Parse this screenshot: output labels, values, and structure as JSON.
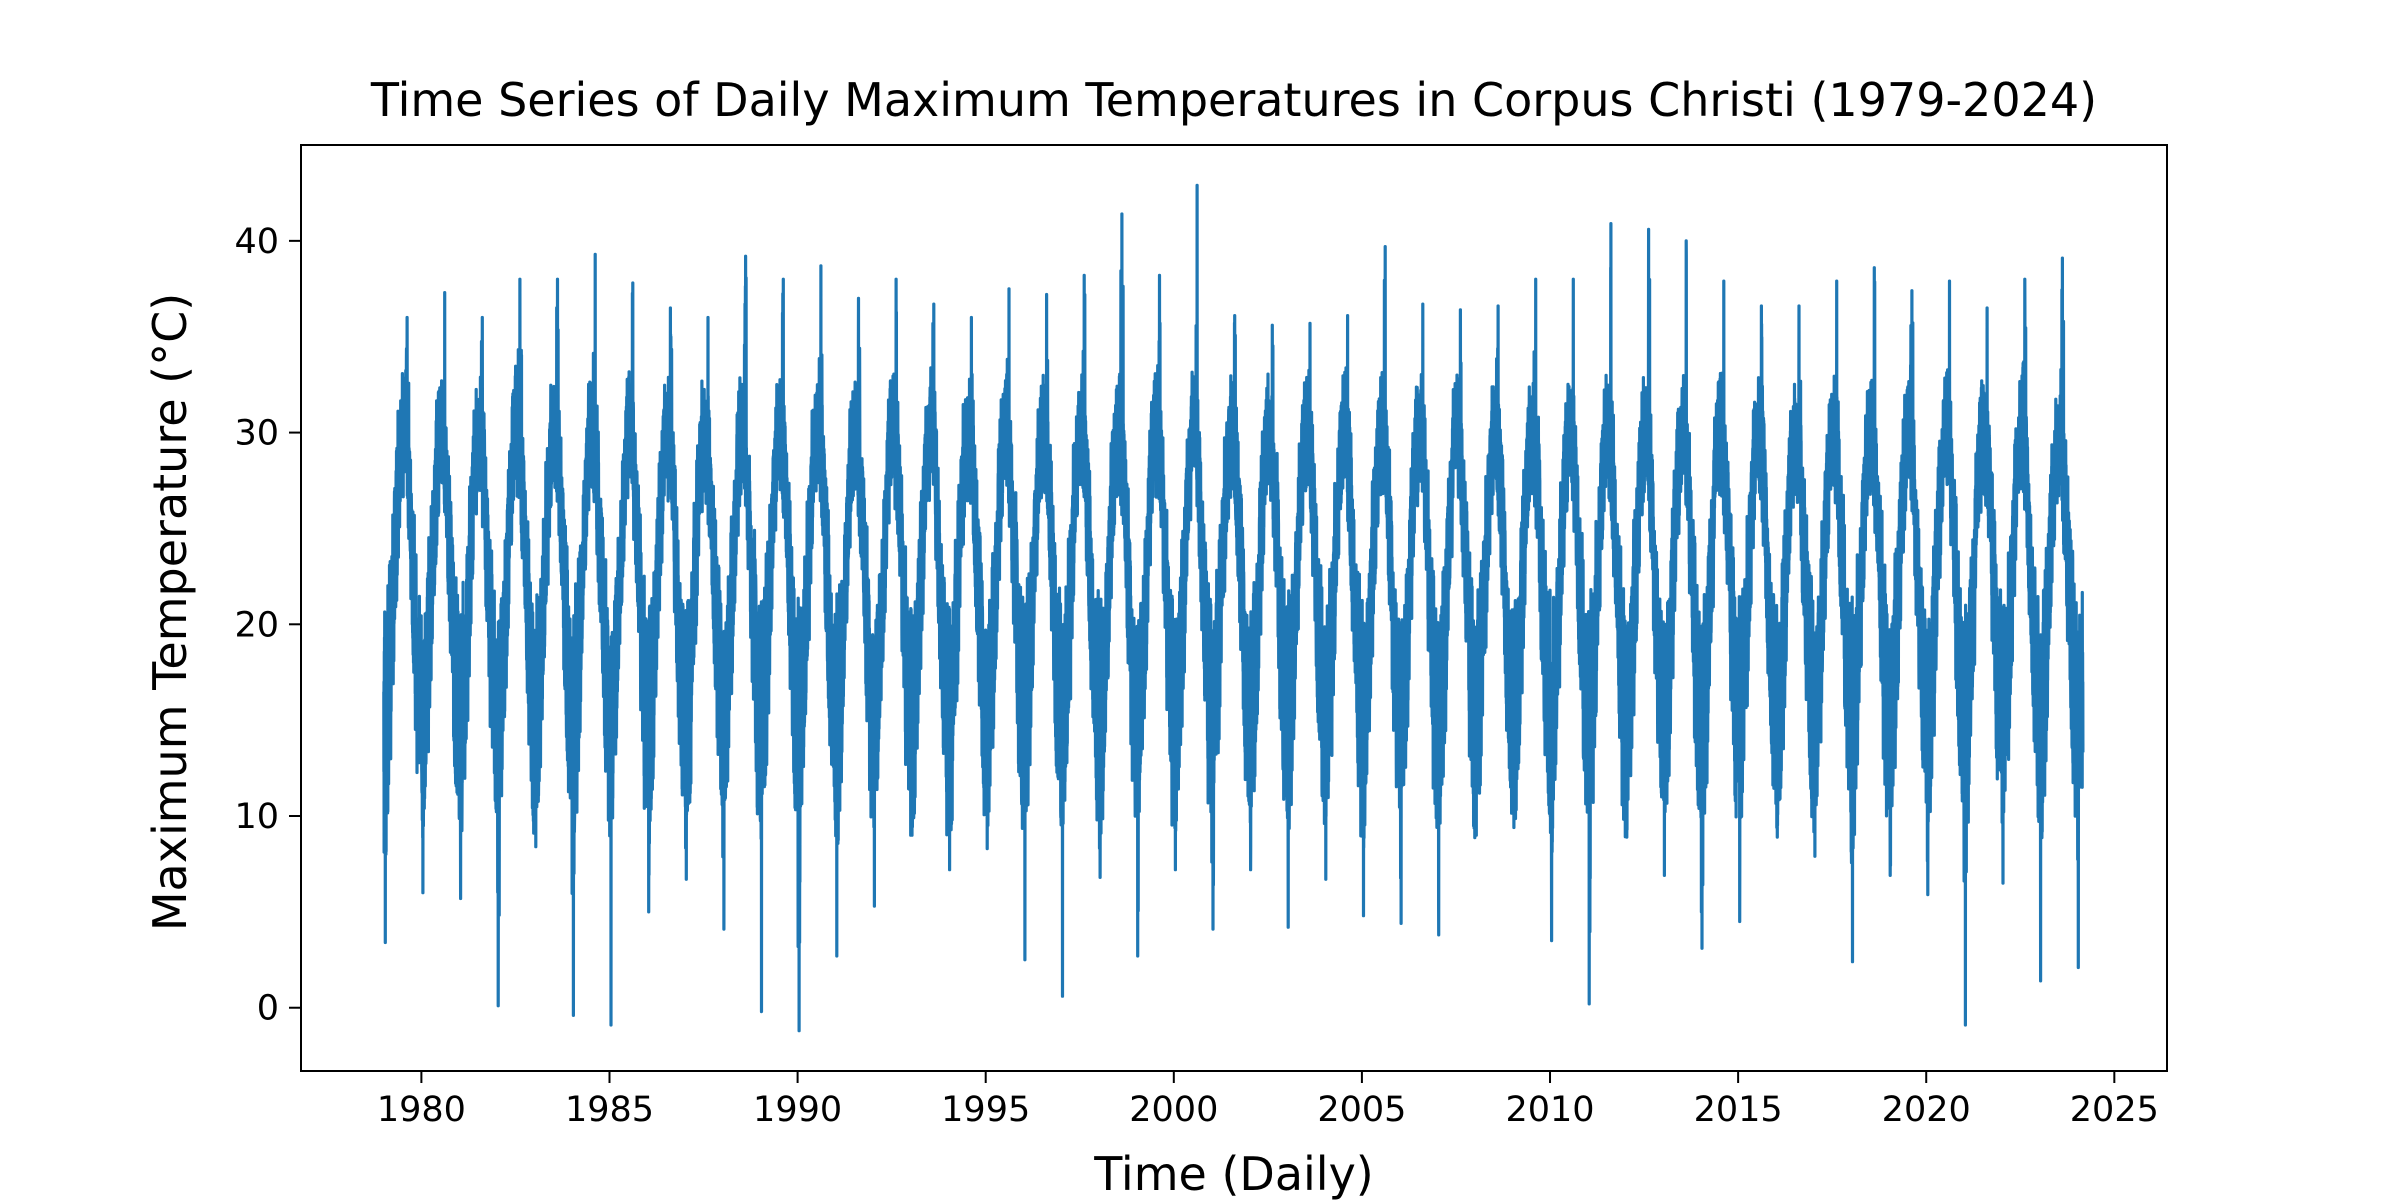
{
  "chart_data": {
    "type": "line",
    "title": "Time Series of Daily Maximum Temperatures in Corpus Christi (1979-2024)",
    "xlabel": "Time (Daily)",
    "ylabel": "Maximum Temperature (°C)",
    "xlim": [
      1976.8,
      2026.4
    ],
    "ylim": [
      -3.3,
      45.0
    ],
    "x_ticks": [
      1980,
      1985,
      1990,
      1995,
      2000,
      2005,
      2010,
      2015,
      2020,
      2025
    ],
    "x_tick_labels": [
      "1980",
      "1985",
      "1990",
      "1995",
      "2000",
      "2005",
      "2010",
      "2015",
      "2020",
      "2025"
    ],
    "y_ticks": [
      0,
      10,
      20,
      30,
      40
    ],
    "y_tick_labels": [
      "0",
      "10",
      "20",
      "30",
      "40"
    ],
    "grid": false,
    "legend": "none",
    "series": [
      {
        "color": "#1f77b4",
        "date_range": [
          "1979-01-01",
          "2024-03-01"
        ],
        "annual_summer_peak_c": [
          36.0,
          37.3,
          36.0,
          38.0,
          38.0,
          39.3,
          37.8,
          36.5,
          36.0,
          39.2,
          38.0,
          38.7,
          37.0,
          38.0,
          36.7,
          36.0,
          37.5,
          37.2,
          38.2,
          41.4,
          38.2,
          42.9,
          36.1,
          35.6,
          35.7,
          36.1,
          39.7,
          36.7,
          36.4,
          36.6,
          38.0,
          38.0,
          40.9,
          40.6,
          40.0,
          37.9,
          36.6,
          36.6,
          37.9,
          38.6,
          37.4,
          37.9,
          36.5,
          38.0,
          39.1,
          30.2
        ],
        "annual_winter_low_c": [
          3.4,
          6.0,
          5.7,
          0.1,
          8.4,
          -0.4,
          -0.9,
          5.0,
          6.7,
          4.1,
          -0.2,
          -1.2,
          2.7,
          5.3,
          9.0,
          7.2,
          8.3,
          2.5,
          0.6,
          6.8,
          2.7,
          7.2,
          4.1,
          7.2,
          4.2,
          6.7,
          4.8,
          4.4,
          3.8,
          9.0,
          9.4,
          3.5,
          0.2,
          8.9,
          6.9,
          3.1,
          4.5,
          8.9,
          7.9,
          2.4,
          6.9,
          5.9,
          -0.9,
          6.5,
          1.4,
          2.1
        ],
        "typical_summer_c": 30,
        "typical_winter_c": 15
      }
    ]
  }
}
